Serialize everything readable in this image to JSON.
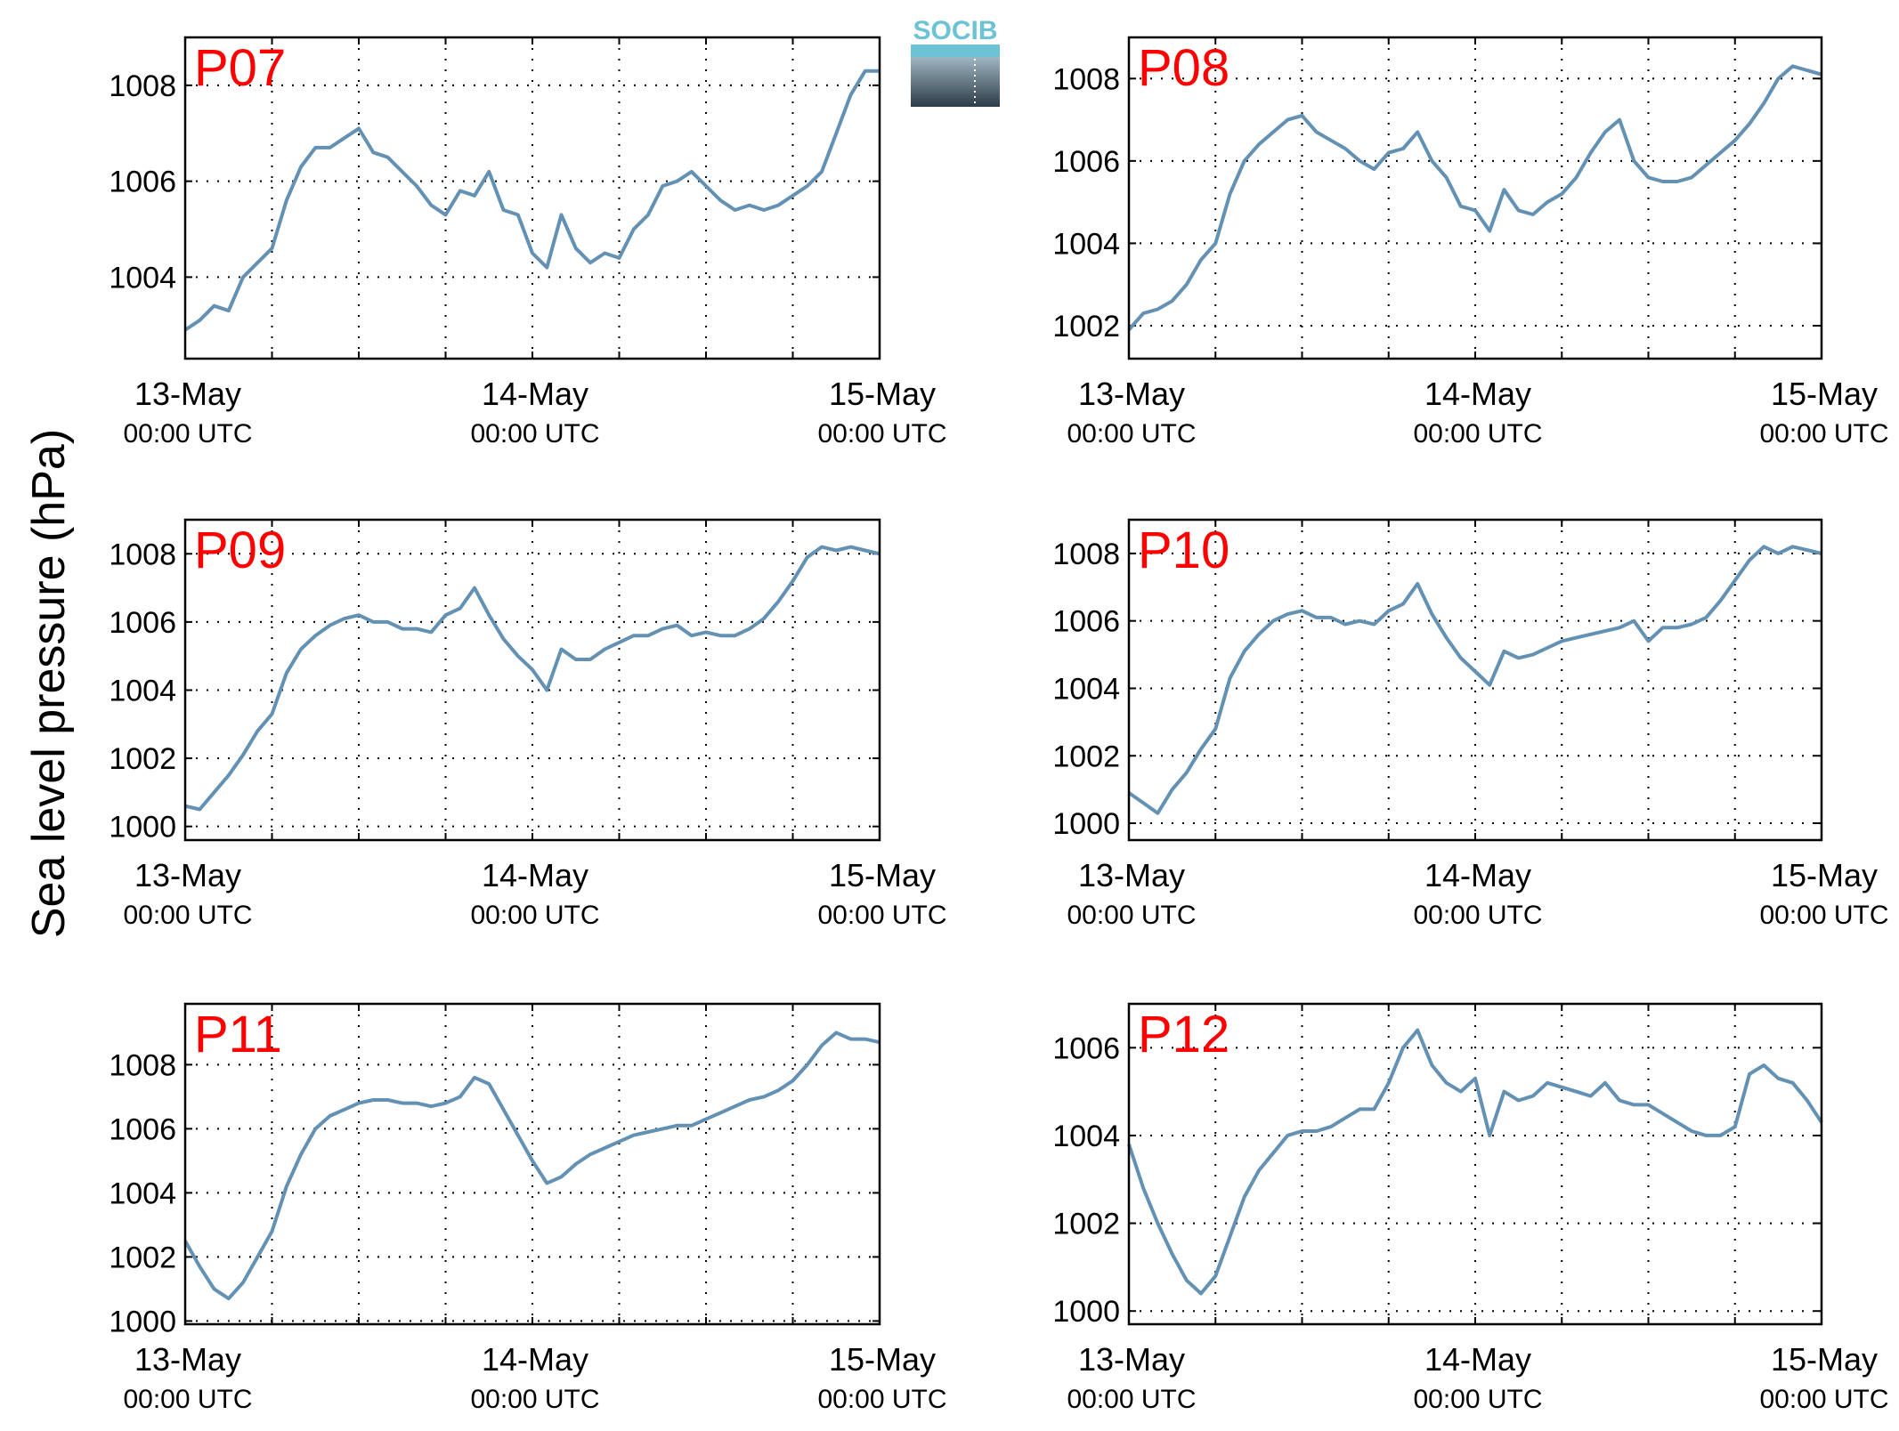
{
  "figure": {
    "ylabel": "Sea level pressure (hPa)",
    "logo_text": "SOCIB",
    "title_color": "#ff0000",
    "line_color": "#6391b4"
  },
  "chart_data": [
    {
      "type": "line",
      "title": "P07",
      "x_labels": [
        [
          "13-May",
          "00:00 UTC"
        ],
        [
          "14-May",
          "00:00 UTC"
        ],
        [
          "15-May",
          "00:00 UTC"
        ]
      ],
      "x_range_hours": [
        0,
        48
      ],
      "ylim": [
        1002.3,
        1009.0
      ],
      "yticks": [
        1004,
        1006,
        1008
      ],
      "series": [
        {
          "x": [
            0,
            1,
            2,
            3,
            4,
            5,
            6,
            7,
            8,
            9,
            10,
            11,
            12,
            13,
            14,
            15,
            16,
            17,
            18,
            19,
            20,
            21,
            22,
            23,
            24,
            25,
            26,
            27,
            28,
            29,
            30,
            31,
            32,
            33,
            34,
            35,
            36,
            37,
            38,
            39,
            40,
            41,
            42,
            43,
            44,
            45,
            46,
            47,
            48
          ],
          "y": [
            1002.9,
            1003.1,
            1003.4,
            1003.3,
            1004.0,
            1004.3,
            1004.6,
            1005.6,
            1006.3,
            1006.7,
            1006.7,
            1006.9,
            1007.1,
            1006.6,
            1006.5,
            1006.2,
            1005.9,
            1005.5,
            1005.3,
            1005.8,
            1005.7,
            1006.2,
            1005.4,
            1005.3,
            1004.5,
            1004.2,
            1005.3,
            1004.6,
            1004.3,
            1004.5,
            1004.4,
            1005.0,
            1005.3,
            1005.9,
            1006.0,
            1006.2,
            1005.9,
            1005.6,
            1005.4,
            1005.5,
            1005.4,
            1005.5,
            1005.7,
            1005.9,
            1006.2,
            1007.0,
            1007.8,
            1008.3,
            1008.3
          ]
        }
      ]
    },
    {
      "type": "line",
      "title": "P08",
      "x_labels": [
        [
          "13-May",
          "00:00 UTC"
        ],
        [
          "14-May",
          "00:00 UTC"
        ],
        [
          "15-May",
          "00:00 UTC"
        ]
      ],
      "x_range_hours": [
        0,
        48
      ],
      "ylim": [
        1001.2,
        1009.0
      ],
      "yticks": [
        1002,
        1004,
        1006,
        1008
      ],
      "series": [
        {
          "x": [
            0,
            1,
            2,
            3,
            4,
            5,
            6,
            7,
            8,
            9,
            10,
            11,
            12,
            13,
            14,
            15,
            16,
            17,
            18,
            19,
            20,
            21,
            22,
            23,
            24,
            25,
            26,
            27,
            28,
            29,
            30,
            31,
            32,
            33,
            34,
            35,
            36,
            37,
            38,
            39,
            40,
            41,
            42,
            43,
            44,
            45,
            46,
            47,
            48
          ],
          "y": [
            1001.9,
            1002.3,
            1002.4,
            1002.6,
            1003.0,
            1003.6,
            1004.0,
            1005.2,
            1006.0,
            1006.4,
            1006.7,
            1007.0,
            1007.1,
            1006.7,
            1006.5,
            1006.3,
            1006.0,
            1005.8,
            1006.2,
            1006.3,
            1006.7,
            1006.0,
            1005.6,
            1004.9,
            1004.8,
            1004.3,
            1005.3,
            1004.8,
            1004.7,
            1005.0,
            1005.2,
            1005.6,
            1006.2,
            1006.7,
            1007.0,
            1006.0,
            1005.6,
            1005.5,
            1005.5,
            1005.6,
            1005.9,
            1006.2,
            1006.5,
            1006.9,
            1007.4,
            1008.0,
            1008.3,
            1008.2,
            1008.1
          ]
        }
      ]
    },
    {
      "type": "line",
      "title": "P09",
      "x_labels": [
        [
          "13-May",
          "00:00 UTC"
        ],
        [
          "14-May",
          "00:00 UTC"
        ],
        [
          "15-May",
          "00:00 UTC"
        ]
      ],
      "x_range_hours": [
        0,
        48
      ],
      "ylim": [
        999.6,
        1009.0
      ],
      "yticks": [
        1000,
        1002,
        1004,
        1006,
        1008
      ],
      "series": [
        {
          "x": [
            0,
            1,
            2,
            3,
            4,
            5,
            6,
            7,
            8,
            9,
            10,
            11,
            12,
            13,
            14,
            15,
            16,
            17,
            18,
            19,
            20,
            21,
            22,
            23,
            24,
            25,
            26,
            27,
            28,
            29,
            30,
            31,
            32,
            33,
            34,
            35,
            36,
            37,
            38,
            39,
            40,
            41,
            42,
            43,
            44,
            45,
            46,
            47,
            48
          ],
          "y": [
            1000.6,
            1000.5,
            1001.0,
            1001.5,
            1002.1,
            1002.8,
            1003.3,
            1004.5,
            1005.2,
            1005.6,
            1005.9,
            1006.1,
            1006.2,
            1006.0,
            1006.0,
            1005.8,
            1005.8,
            1005.7,
            1006.2,
            1006.4,
            1007.0,
            1006.2,
            1005.5,
            1005.0,
            1004.6,
            1004.0,
            1005.2,
            1004.9,
            1004.9,
            1005.2,
            1005.4,
            1005.6,
            1005.6,
            1005.8,
            1005.9,
            1005.6,
            1005.7,
            1005.6,
            1005.6,
            1005.8,
            1006.1,
            1006.6,
            1007.2,
            1007.9,
            1008.2,
            1008.1,
            1008.2,
            1008.1,
            1008.0
          ]
        }
      ]
    },
    {
      "type": "line",
      "title": "P10",
      "x_labels": [
        [
          "13-May",
          "00:00 UTC"
        ],
        [
          "14-May",
          "00:00 UTC"
        ],
        [
          "15-May",
          "00:00 UTC"
        ]
      ],
      "x_range_hours": [
        0,
        48
      ],
      "ylim": [
        999.5,
        1009.0
      ],
      "yticks": [
        1000,
        1002,
        1004,
        1006,
        1008
      ],
      "series": [
        {
          "x": [
            0,
            1,
            2,
            3,
            4,
            5,
            6,
            7,
            8,
            9,
            10,
            11,
            12,
            13,
            14,
            15,
            16,
            17,
            18,
            19,
            20,
            21,
            22,
            23,
            24,
            25,
            26,
            27,
            28,
            29,
            30,
            31,
            32,
            33,
            34,
            35,
            36,
            37,
            38,
            39,
            40,
            41,
            42,
            43,
            44,
            45,
            46,
            47,
            48
          ],
          "y": [
            1000.9,
            1000.6,
            1000.3,
            1001.0,
            1001.5,
            1002.2,
            1002.8,
            1004.3,
            1005.1,
            1005.6,
            1006.0,
            1006.2,
            1006.3,
            1006.1,
            1006.1,
            1005.9,
            1006.0,
            1005.9,
            1006.3,
            1006.5,
            1007.1,
            1006.2,
            1005.5,
            1004.9,
            1004.5,
            1004.1,
            1005.1,
            1004.9,
            1005.0,
            1005.2,
            1005.4,
            1005.5,
            1005.6,
            1005.7,
            1005.8,
            1006.0,
            1005.4,
            1005.8,
            1005.8,
            1005.9,
            1006.1,
            1006.6,
            1007.2,
            1007.8,
            1008.2,
            1008.0,
            1008.2,
            1008.1,
            1008.0
          ]
        }
      ]
    },
    {
      "type": "line",
      "title": "P11",
      "x_labels": [
        [
          "13-May",
          "00:00 UTC"
        ],
        [
          "14-May",
          "00:00 UTC"
        ],
        [
          "15-May",
          "00:00 UTC"
        ]
      ],
      "x_range_hours": [
        0,
        48
      ],
      "ylim": [
        999.9,
        1009.9
      ],
      "yticks": [
        1000,
        1002,
        1004,
        1006,
        1008
      ],
      "series": [
        {
          "x": [
            0,
            1,
            2,
            3,
            4,
            5,
            6,
            7,
            8,
            9,
            10,
            11,
            12,
            13,
            14,
            15,
            16,
            17,
            18,
            19,
            20,
            21,
            22,
            23,
            24,
            25,
            26,
            27,
            28,
            29,
            30,
            31,
            32,
            33,
            34,
            35,
            36,
            37,
            38,
            39,
            40,
            41,
            42,
            43,
            44,
            45,
            46,
            47,
            48
          ],
          "y": [
            1002.5,
            1001.7,
            1001.0,
            1000.7,
            1001.2,
            1002.0,
            1002.8,
            1004.2,
            1005.2,
            1006.0,
            1006.4,
            1006.6,
            1006.8,
            1006.9,
            1006.9,
            1006.8,
            1006.8,
            1006.7,
            1006.8,
            1007.0,
            1007.6,
            1007.4,
            1006.6,
            1005.8,
            1005.0,
            1004.3,
            1004.5,
            1004.9,
            1005.2,
            1005.4,
            1005.6,
            1005.8,
            1005.9,
            1006.0,
            1006.1,
            1006.1,
            1006.3,
            1006.5,
            1006.7,
            1006.9,
            1007.0,
            1007.2,
            1007.5,
            1008.0,
            1008.6,
            1009.0,
            1008.8,
            1008.8,
            1008.7
          ]
        }
      ]
    },
    {
      "type": "line",
      "title": "P12",
      "x_labels": [
        [
          "13-May",
          "00:00 UTC"
        ],
        [
          "14-May",
          "00:00 UTC"
        ],
        [
          "15-May",
          "00:00 UTC"
        ]
      ],
      "x_range_hours": [
        0,
        48
      ],
      "ylim": [
        999.7,
        1007.0
      ],
      "yticks": [
        1000,
        1002,
        1004,
        1006
      ],
      "series": [
        {
          "x": [
            0,
            1,
            2,
            3,
            4,
            5,
            6,
            7,
            8,
            9,
            10,
            11,
            12,
            13,
            14,
            15,
            16,
            17,
            18,
            19,
            20,
            21,
            22,
            23,
            24,
            25,
            26,
            27,
            28,
            29,
            30,
            31,
            32,
            33,
            34,
            35,
            36,
            37,
            38,
            39,
            40,
            41,
            42,
            43,
            44,
            45,
            46,
            47,
            48
          ],
          "y": [
            1003.8,
            1002.8,
            1002.0,
            1001.3,
            1000.7,
            1000.4,
            1000.8,
            1001.7,
            1002.6,
            1003.2,
            1003.6,
            1004.0,
            1004.1,
            1004.1,
            1004.2,
            1004.4,
            1004.6,
            1004.6,
            1005.2,
            1006.0,
            1006.4,
            1005.6,
            1005.2,
            1005.0,
            1005.3,
            1004.0,
            1005.0,
            1004.8,
            1004.9,
            1005.2,
            1005.1,
            1005.0,
            1004.9,
            1005.2,
            1004.8,
            1004.7,
            1004.7,
            1004.5,
            1004.3,
            1004.1,
            1004.0,
            1004.0,
            1004.2,
            1005.4,
            1005.6,
            1005.3,
            1005.2,
            1004.8,
            1004.3
          ]
        }
      ]
    }
  ]
}
